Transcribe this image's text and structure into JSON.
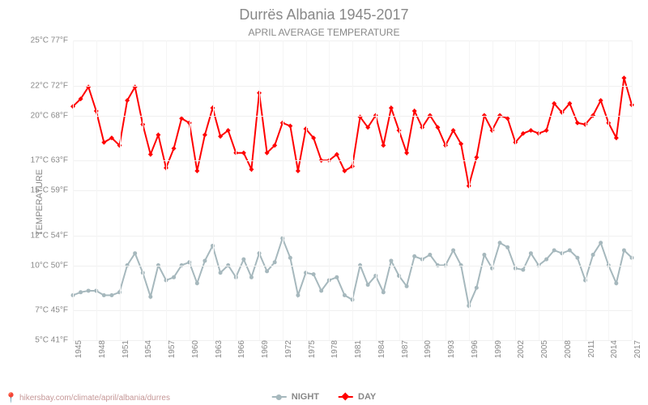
{
  "title": "Durrës Albania 1945-2017",
  "subtitle": "APRIL AVERAGE TEMPERATURE",
  "y_axis_label": "TEMPERATURE",
  "y_ticks": [
    {
      "c": "5°C",
      "f": "41°F",
      "val": 5
    },
    {
      "c": "7°C",
      "f": "45°F",
      "val": 7
    },
    {
      "c": "10°C",
      "f": "50°F",
      "val": 10
    },
    {
      "c": "12°C",
      "f": "54°F",
      "val": 12
    },
    {
      "c": "15°C",
      "f": "59°F",
      "val": 15
    },
    {
      "c": "17°C",
      "f": "63°F",
      "val": 17
    },
    {
      "c": "20°C",
      "f": "68°F",
      "val": 20
    },
    {
      "c": "22°C",
      "f": "72°F",
      "val": 22
    },
    {
      "c": "25°C",
      "f": "77°F",
      "val": 25
    }
  ],
  "x_tick_years": [
    1945,
    1948,
    1951,
    1954,
    1957,
    1960,
    1963,
    1966,
    1969,
    1972,
    1975,
    1978,
    1981,
    1984,
    1987,
    1990,
    1993,
    1996,
    1999,
    2002,
    2005,
    2008,
    2011,
    2014,
    2017
  ],
  "chart": {
    "type": "line",
    "x_range": [
      1945,
      2017
    ],
    "y_range": [
      5,
      25
    ],
    "background_color": "#ffffff",
    "grid_color": "#f0f0f0",
    "series": [
      {
        "name": "DAY",
        "color": "#ff0000",
        "marker": "diamond",
        "marker_size": 6,
        "line_width": 2,
        "years": [
          1945,
          1946,
          1947,
          1948,
          1949,
          1950,
          1951,
          1952,
          1953,
          1954,
          1955,
          1956,
          1957,
          1958,
          1959,
          1960,
          1961,
          1962,
          1963,
          1964,
          1965,
          1966,
          1967,
          1968,
          1969,
          1970,
          1971,
          1972,
          1973,
          1974,
          1975,
          1976,
          1977,
          1978,
          1979,
          1980,
          1981,
          1982,
          1983,
          1984,
          1985,
          1986,
          1987,
          1988,
          1989,
          1990,
          1991,
          1992,
          1993,
          1994,
          1995,
          1996,
          1997,
          1998,
          1999,
          2000,
          2001,
          2002,
          2003,
          2004,
          2005,
          2006,
          2007,
          2008,
          2009,
          2010,
          2011,
          2012,
          2013,
          2014,
          2015,
          2016,
          2017
        ],
        "values": [
          20.6,
          21.1,
          21.9,
          20.3,
          18.2,
          18.5,
          18.0,
          21.0,
          21.9,
          19.4,
          17.4,
          18.7,
          16.5,
          17.8,
          19.8,
          19.5,
          16.3,
          18.7,
          20.5,
          18.6,
          19.0,
          17.5,
          17.5,
          16.4,
          21.5,
          17.5,
          18.0,
          19.5,
          19.3,
          16.3,
          19.1,
          18.5,
          17.0,
          17.0,
          17.4,
          16.3,
          16.6,
          19.9,
          19.2,
          20.0,
          18.0,
          20.5,
          19.0,
          17.5,
          20.3,
          19.2,
          20.0,
          19.2,
          18.0,
          19.0,
          18.1,
          15.3,
          17.2,
          20.0,
          19.0,
          20.0,
          19.8,
          18.2,
          18.8,
          19.0,
          18.8,
          19.0,
          20.8,
          20.2,
          20.8,
          19.5,
          19.4,
          20.0,
          21.0,
          19.5,
          18.5,
          22.5,
          20.7
        ]
      },
      {
        "name": "NIGHT",
        "color": "#a6b8bd",
        "marker": "circle",
        "marker_size": 5,
        "line_width": 2,
        "years": [
          1945,
          1946,
          1947,
          1948,
          1949,
          1950,
          1951,
          1952,
          1953,
          1954,
          1955,
          1956,
          1957,
          1958,
          1959,
          1960,
          1961,
          1962,
          1963,
          1964,
          1965,
          1966,
          1967,
          1968,
          1969,
          1970,
          1971,
          1972,
          1973,
          1974,
          1975,
          1976,
          1977,
          1978,
          1979,
          1980,
          1981,
          1982,
          1983,
          1984,
          1985,
          1986,
          1987,
          1988,
          1989,
          1990,
          1991,
          1992,
          1993,
          1994,
          1995,
          1996,
          1997,
          1998,
          1999,
          2000,
          2001,
          2002,
          2003,
          2004,
          2005,
          2006,
          2007,
          2008,
          2009,
          2010,
          2011,
          2012,
          2013,
          2014,
          2015,
          2016,
          2017
        ],
        "values": [
          8.0,
          8.2,
          8.3,
          8.3,
          8.0,
          8.0,
          8.2,
          10.0,
          10.8,
          9.5,
          7.9,
          10.0,
          9.0,
          9.2,
          10.0,
          10.2,
          8.8,
          10.3,
          11.3,
          9.5,
          10.0,
          9.2,
          10.4,
          9.2,
          10.8,
          9.6,
          10.2,
          11.8,
          10.5,
          8.0,
          9.5,
          9.4,
          8.3,
          9.0,
          9.2,
          8.0,
          7.7,
          10.0,
          8.7,
          9.3,
          8.2,
          10.3,
          9.3,
          8.6,
          10.6,
          10.4,
          10.7,
          10.0,
          10.0,
          11.0,
          10.0,
          7.3,
          8.5,
          10.7,
          9.8,
          11.5,
          11.2,
          9.8,
          9.7,
          10.8,
          10.0,
          10.4,
          11.0,
          10.8,
          11.0,
          10.5,
          9.0,
          10.7,
          11.5,
          10.0,
          8.8,
          11.0,
          10.5
        ]
      }
    ]
  },
  "legend": {
    "night_label": "NIGHT",
    "day_label": "DAY"
  },
  "footer": {
    "url": "hikersbay.com/climate/april/albania/durres"
  }
}
